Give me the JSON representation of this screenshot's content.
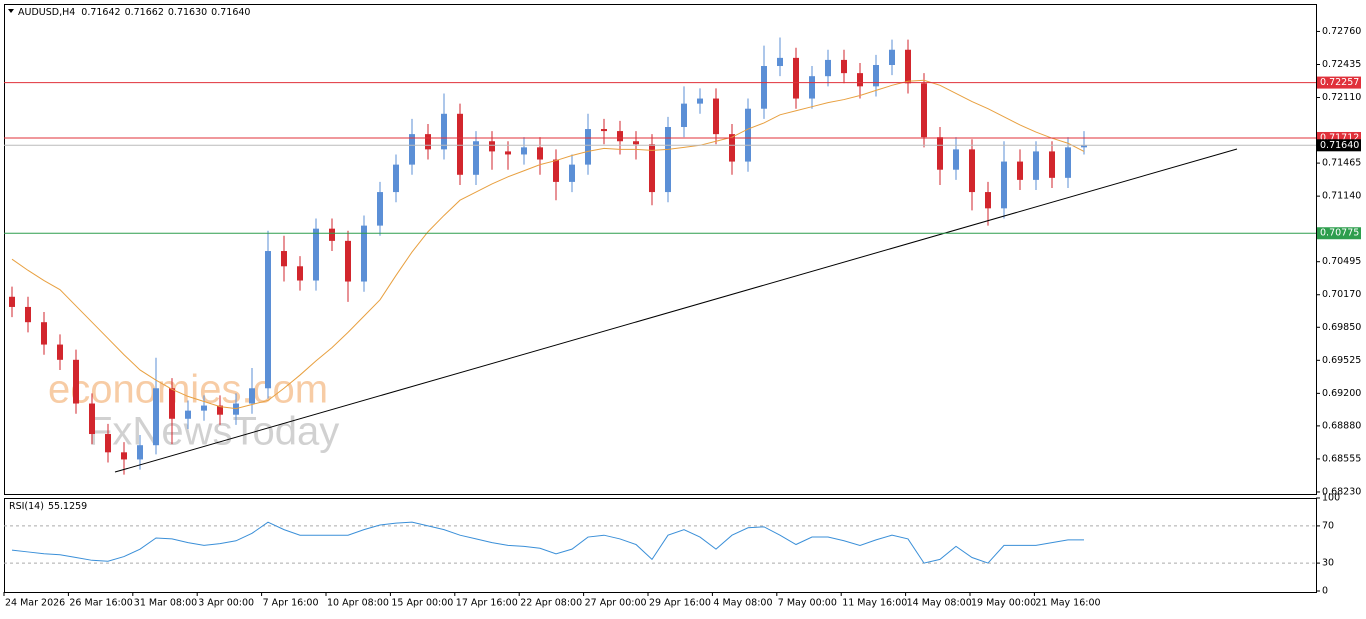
{
  "chart_data": {
    "type": "candlestick",
    "title": "AUDUSD,H4",
    "quote": [
      {
        "value": 0.71642,
        "label": "0.71642"
      },
      {
        "value": 0.71662,
        "label": "0.71662"
      },
      {
        "value": 0.7163,
        "label": "0.71630"
      },
      {
        "value": 0.7164,
        "label": "0.71640"
      }
    ],
    "up_color": "#5b8fd6",
    "down_color": "#d2262d",
    "ylim": [
      0.6821,
      0.7303
    ],
    "yticks": [
      {
        "value": 0.7276,
        "label": "0.72760"
      },
      {
        "value": 0.72435,
        "label": "0.72435"
      },
      {
        "value": 0.7211,
        "label": "0.72110"
      },
      {
        "value": 0.71465,
        "label": "0.71465"
      },
      {
        "value": 0.7114,
        "label": "0.71140"
      },
      {
        "value": 0.70495,
        "label": "0.70495"
      },
      {
        "value": 0.7017,
        "label": "0.70170"
      },
      {
        "value": 0.6985,
        "label": "0.69850"
      },
      {
        "value": 0.69525,
        "label": "0.69525"
      },
      {
        "value": 0.692,
        "label": "0.69200"
      },
      {
        "value": 0.6888,
        "label": "0.68880"
      },
      {
        "value": 0.68555,
        "label": "0.68555"
      },
      {
        "value": 0.6823,
        "label": "0.68230"
      }
    ],
    "x_labels": [
      "24 Mar 2026",
      "26 Mar 16:00",
      "31 Mar 08:00",
      "3 Apr 00:00",
      "7 Apr 16:00",
      "10 Apr 08:00",
      "15 Apr 00:00",
      "17 Apr 16:00",
      "22 Apr 08:00",
      "27 Apr 00:00",
      "29 Apr 16:00",
      "4 May 08:00",
      "7 May 00:00",
      "11 May 16:00",
      "14 May 08:00",
      "19 May 00:00",
      "21 May 16:00"
    ],
    "candles": [
      [
        0.7015,
        0.7025,
        0.6995,
        0.7005
      ],
      [
        0.7005,
        0.7015,
        0.698,
        0.699
      ],
      [
        0.699,
        0.7,
        0.6958,
        0.6968
      ],
      [
        0.6968,
        0.6978,
        0.6943,
        0.6953
      ],
      [
        0.6953,
        0.6963,
        0.69,
        0.691
      ],
      [
        0.691,
        0.692,
        0.687,
        0.688
      ],
      [
        0.688,
        0.689,
        0.6852,
        0.6862
      ],
      [
        0.6862,
        0.6872,
        0.684,
        0.6855
      ],
      [
        0.6855,
        0.6879,
        0.6845,
        0.6869
      ],
      [
        0.6869,
        0.6955,
        0.686,
        0.6925
      ],
      [
        0.6925,
        0.6935,
        0.687,
        0.6895
      ],
      [
        0.6895,
        0.6913,
        0.6885,
        0.6903
      ],
      [
        0.6903,
        0.6918,
        0.6893,
        0.6908
      ],
      [
        0.6908,
        0.6918,
        0.6889,
        0.6899
      ],
      [
        0.6899,
        0.692,
        0.6889,
        0.691
      ],
      [
        0.691,
        0.6945,
        0.69,
        0.6925
      ],
      [
        0.6925,
        0.708,
        0.6915,
        0.706
      ],
      [
        0.706,
        0.7075,
        0.703,
        0.7045
      ],
      [
        0.7045,
        0.7055,
        0.7021,
        0.7031
      ],
      [
        0.7031,
        0.7092,
        0.7021,
        0.7082
      ],
      [
        0.7082,
        0.7092,
        0.706,
        0.707
      ],
      [
        0.707,
        0.708,
        0.701,
        0.703
      ],
      [
        0.703,
        0.7095,
        0.702,
        0.7085
      ],
      [
        0.7085,
        0.7128,
        0.7075,
        0.7118
      ],
      [
        0.7118,
        0.7155,
        0.7108,
        0.7145
      ],
      [
        0.7145,
        0.719,
        0.7135,
        0.7175
      ],
      [
        0.7175,
        0.7185,
        0.715,
        0.716
      ],
      [
        0.716,
        0.7215,
        0.715,
        0.7195
      ],
      [
        0.7195,
        0.7205,
        0.7125,
        0.7135
      ],
      [
        0.7135,
        0.7178,
        0.7125,
        0.7168
      ],
      [
        0.7168,
        0.7178,
        0.714,
        0.7158
      ],
      [
        0.7158,
        0.7168,
        0.714,
        0.7155
      ],
      [
        0.7155,
        0.7172,
        0.7145,
        0.7162
      ],
      [
        0.7162,
        0.7172,
        0.7135,
        0.715
      ],
      [
        0.715,
        0.716,
        0.711,
        0.7128
      ],
      [
        0.7128,
        0.7155,
        0.7118,
        0.7145
      ],
      [
        0.7145,
        0.7195,
        0.7135,
        0.718
      ],
      [
        0.718,
        0.719,
        0.7165,
        0.7178
      ],
      [
        0.7178,
        0.7188,
        0.7155,
        0.7168
      ],
      [
        0.7168,
        0.7178,
        0.715,
        0.7165
      ],
      [
        0.7165,
        0.7175,
        0.7105,
        0.7118
      ],
      [
        0.7118,
        0.7192,
        0.7108,
        0.7182
      ],
      [
        0.7182,
        0.7222,
        0.7172,
        0.7205
      ],
      [
        0.7205,
        0.722,
        0.7195,
        0.721
      ],
      [
        0.721,
        0.722,
        0.7165,
        0.7175
      ],
      [
        0.7175,
        0.7185,
        0.7135,
        0.7148
      ],
      [
        0.7148,
        0.721,
        0.7138,
        0.72
      ],
      [
        0.72,
        0.7262,
        0.719,
        0.7242
      ],
      [
        0.7242,
        0.727,
        0.7232,
        0.725
      ],
      [
        0.725,
        0.726,
        0.72,
        0.721
      ],
      [
        0.721,
        0.7242,
        0.72,
        0.7232
      ],
      [
        0.7232,
        0.7258,
        0.7222,
        0.7248
      ],
      [
        0.7248,
        0.7258,
        0.7225,
        0.7235
      ],
      [
        0.7235,
        0.7245,
        0.721,
        0.7222
      ],
      [
        0.7222,
        0.7253,
        0.7212,
        0.7243
      ],
      [
        0.7243,
        0.7268,
        0.7233,
        0.7258
      ],
      [
        0.7258,
        0.7268,
        0.7215,
        0.7225
      ],
      [
        0.7225,
        0.7235,
        0.7162,
        0.7172
      ],
      [
        0.7172,
        0.7182,
        0.7125,
        0.714
      ],
      [
        0.714,
        0.7172,
        0.713,
        0.716
      ],
      [
        0.716,
        0.717,
        0.71,
        0.7118
      ],
      [
        0.7118,
        0.7128,
        0.7085,
        0.7102
      ],
      [
        0.7102,
        0.7168,
        0.7092,
        0.7148
      ],
      [
        0.7148,
        0.716,
        0.712,
        0.713
      ],
      [
        0.713,
        0.7168,
        0.712,
        0.7158
      ],
      [
        0.7158,
        0.7168,
        0.7122,
        0.7132
      ],
      [
        0.7132,
        0.7172,
        0.7122,
        0.7162
      ],
      [
        0.7162,
        0.7178,
        0.7155,
        0.7164
      ]
    ],
    "ma": {
      "color": "#e8a040",
      "values": [
        0.7052,
        0.7041,
        0.7031,
        0.7022,
        0.7006,
        0.699,
        0.6974,
        0.6958,
        0.6943,
        0.6933,
        0.6924,
        0.6917,
        0.6912,
        0.6907,
        0.6905,
        0.6909,
        0.6913,
        0.6925,
        0.6938,
        0.6952,
        0.6965,
        0.698,
        0.6996,
        0.7012,
        0.7036,
        0.7059,
        0.7079,
        0.7095,
        0.711,
        0.7118,
        0.7126,
        0.7133,
        0.7139,
        0.7145,
        0.7149,
        0.7154,
        0.7158,
        0.7161,
        0.716,
        0.716,
        0.7159,
        0.716,
        0.7162,
        0.7164,
        0.7168,
        0.7172,
        0.718,
        0.7186,
        0.7194,
        0.7198,
        0.7202,
        0.7206,
        0.7209,
        0.7213,
        0.7218,
        0.7223,
        0.7227,
        0.7228,
        0.7223,
        0.7215,
        0.7207,
        0.72,
        0.7192,
        0.7184,
        0.7177,
        0.7171,
        0.7166,
        0.7158
      ]
    },
    "trendline": {
      "color": "#000000",
      "values": [
        0.68426,
        0.71604
      ]
    },
    "levels": [
      {
        "value": 0.72257,
        "label": "0.72257",
        "color": "#e0303a"
      },
      {
        "value": 0.71712,
        "label": "0.71712",
        "color": "#e0303a"
      },
      {
        "value": 0.70775,
        "label": "0.70775",
        "color": "#2e9e4e"
      },
      {
        "value": 0.7164,
        "label": "0.71640",
        "color": "#000000"
      }
    ],
    "watermark": [
      "economies.com",
      "FxNewsToday"
    ],
    "rsi": {
      "title": "RSI(14)",
      "value": 55.1259,
      "color": "#3a8fd8",
      "ylim": [
        0,
        100
      ],
      "yticks": [
        100,
        70,
        30,
        0
      ],
      "levels": [
        70,
        30
      ],
      "values": [
        44,
        42,
        40,
        39,
        36,
        33,
        32,
        37,
        45,
        57,
        56,
        52,
        49,
        51,
        54,
        62,
        74,
        66,
        60,
        60,
        60,
        60,
        66,
        71,
        73,
        74,
        70,
        66,
        60,
        56,
        52,
        49,
        48,
        46,
        40,
        45,
        58,
        60,
        56,
        50,
        34,
        60,
        66,
        58,
        45,
        60,
        68,
        69,
        60,
        50,
        58,
        58,
        54,
        49,
        55,
        60,
        56,
        30,
        34,
        48,
        36,
        30,
        49,
        49,
        49,
        52,
        55,
        55
      ]
    }
  }
}
